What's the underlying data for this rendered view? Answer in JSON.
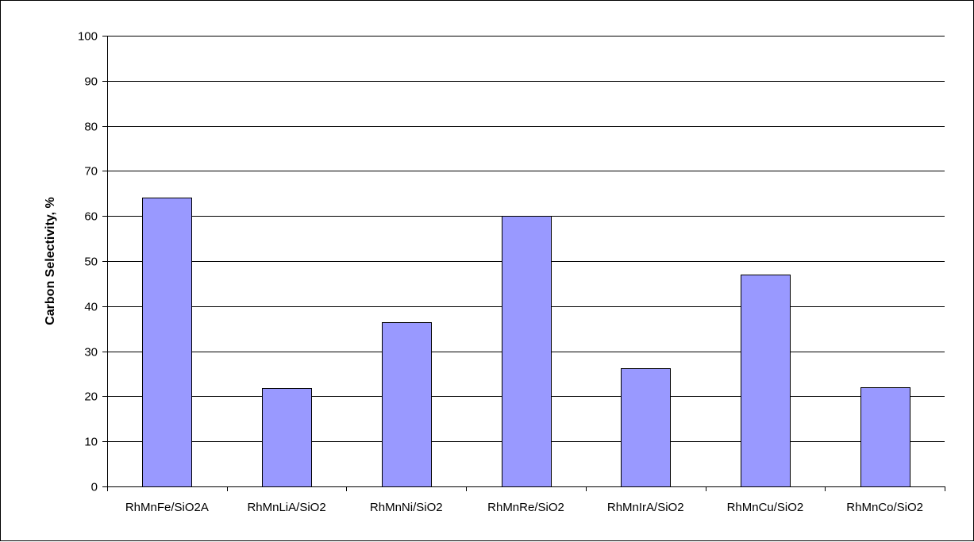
{
  "chart_data": {
    "type": "bar",
    "title": "",
    "xlabel": "",
    "ylabel": "Carbon Selectivity, %",
    "ylim": [
      0,
      100
    ],
    "yticks": [
      0,
      10,
      20,
      30,
      40,
      50,
      60,
      70,
      80,
      90,
      100
    ],
    "grid": true,
    "legend": "none",
    "categories": [
      "RhMnFe/SiO2A",
      "RhMnLiA/SiO2",
      "RhMnNi/SiO2",
      "RhMnRe/SiO2",
      "RhMnIrA/SiO2",
      "RhMnCu/SiO2",
      "RhMnCo/SiO2"
    ],
    "values": [
      64,
      21.8,
      36.5,
      60,
      26.3,
      47,
      22
    ],
    "bar_color": "#9999ff",
    "bar_edge_color": "#000000"
  }
}
